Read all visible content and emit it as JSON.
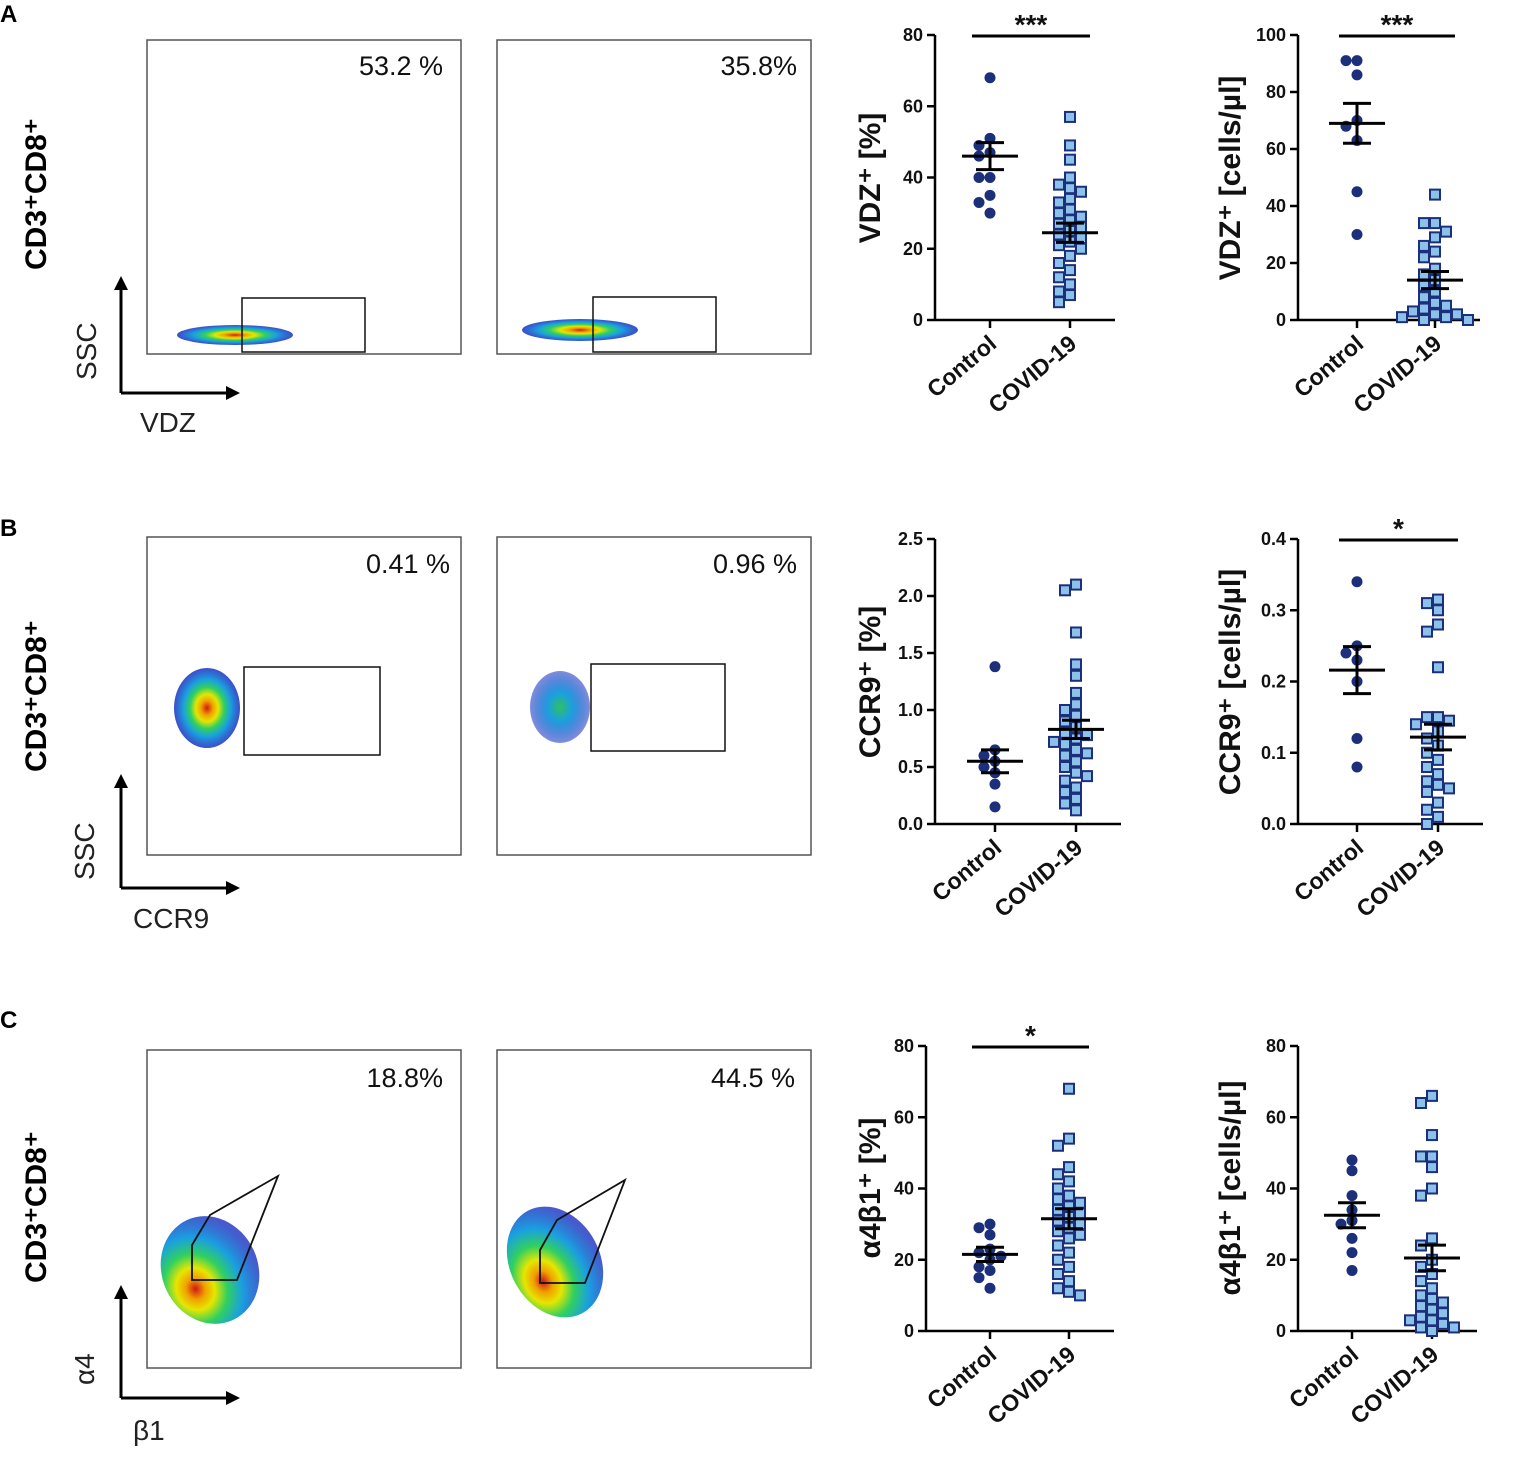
{
  "colors": {
    "control": "#1b2f7a",
    "covid_fill": "#8cc1ea",
    "covid_stroke": "#1b2f7a",
    "line": "#000000"
  },
  "panels": [
    {
      "letter": "A",
      "row_label": "CD3⁺CD8⁺",
      "flow_y_axis": "SSC",
      "flow_x_axis": "VDZ",
      "flow_left_pct": "53.2 %",
      "flow_right_pct": "35.8%"
    },
    {
      "letter": "B",
      "row_label": "CD3⁺CD8⁺",
      "flow_y_axis": "SSC",
      "flow_x_axis": "CCR9",
      "flow_left_pct": "0.41 %",
      "flow_right_pct": "0.96 %"
    },
    {
      "letter": "C",
      "row_label": "CD3⁺CD8⁺",
      "flow_y_axis": "α4",
      "flow_x_axis": "β1",
      "flow_left_pct": "18.8%",
      "flow_right_pct": "44.5 %"
    }
  ],
  "chart_data": [
    {
      "type": "scatter",
      "id": "A-pct",
      "ylabel": "VDZ⁺ [%]",
      "categories": [
        "Control",
        "COVID-19"
      ],
      "ylim": [
        0,
        80
      ],
      "yticks": [
        "0",
        "20",
        "40",
        "60",
        "80"
      ],
      "significance": "***",
      "series": [
        {
          "name": "Control",
          "mean": 46,
          "sem": 3.8,
          "values": [
            68,
            51,
            49,
            47,
            46,
            40,
            40,
            35,
            33,
            30
          ]
        },
        {
          "name": "COVID-19",
          "mean": 24.5,
          "sem": 2.7,
          "values": [
            57,
            49,
            45,
            40,
            38,
            37,
            36,
            34,
            33,
            31,
            30,
            29,
            28,
            27,
            26,
            25,
            24,
            23,
            22,
            21,
            20,
            18,
            16,
            14,
            12,
            10,
            8,
            7,
            5
          ]
        }
      ]
    },
    {
      "type": "scatter",
      "id": "A-abs",
      "ylabel": "VDZ⁺ [cells/µl]",
      "categories": [
        "Control",
        "COVID-19"
      ],
      "ylim": [
        0,
        100
      ],
      "yticks": [
        "0",
        "20",
        "40",
        "60",
        "80",
        "100"
      ],
      "significance": "***",
      "series": [
        {
          "name": "Control",
          "mean": 69,
          "sem": 7,
          "values": [
            91,
            91,
            86,
            70,
            68,
            63,
            45,
            30
          ]
        },
        {
          "name": "COVID-19",
          "mean": 14,
          "sem": 3,
          "values": [
            44,
            34,
            34,
            31,
            29,
            26,
            24,
            22,
            18,
            16,
            14,
            12,
            10,
            8,
            6,
            5,
            4,
            3,
            2,
            2,
            1,
            1,
            0,
            0
          ]
        }
      ]
    },
    {
      "type": "scatter",
      "id": "B-pct",
      "ylabel": "CCR9⁺ [%]",
      "categories": [
        "Control",
        "COVID-19"
      ],
      "ylim": [
        0,
        2.5
      ],
      "yticks": [
        "0.0",
        "0.5",
        "1.0",
        "1.5",
        "2.0",
        "2.5"
      ],
      "significance": "",
      "series": [
        {
          "name": "Control",
          "mean": 0.55,
          "sem": 0.1,
          "values": [
            1.38,
            0.65,
            0.6,
            0.55,
            0.5,
            0.45,
            0.35,
            0.15
          ]
        },
        {
          "name": "COVID-19",
          "mean": 0.83,
          "sem": 0.08,
          "values": [
            2.1,
            2.05,
            1.68,
            1.4,
            1.3,
            1.15,
            1.05,
            1.0,
            0.95,
            0.9,
            0.85,
            0.8,
            0.78,
            0.75,
            0.72,
            0.7,
            0.65,
            0.62,
            0.6,
            0.55,
            0.5,
            0.45,
            0.42,
            0.38,
            0.32,
            0.28,
            0.22,
            0.18,
            0.12
          ]
        }
      ]
    },
    {
      "type": "scatter",
      "id": "B-abs",
      "ylabel": "CCR9⁺ [cells/µl]",
      "categories": [
        "Control",
        "COVID-19"
      ],
      "ylim": [
        0,
        0.4
      ],
      "yticks": [
        "0.0",
        "0.1",
        "0.2",
        "0.3",
        "0.4"
      ],
      "significance": "*",
      "series": [
        {
          "name": "Control",
          "mean": 0.216,
          "sem": 0.033,
          "values": [
            0.34,
            0.25,
            0.24,
            0.23,
            0.2,
            0.12,
            0.08
          ]
        },
        {
          "name": "COVID-19",
          "mean": 0.122,
          "sem": 0.018,
          "values": [
            0.315,
            0.31,
            0.3,
            0.28,
            0.27,
            0.22,
            0.15,
            0.15,
            0.145,
            0.14,
            0.13,
            0.12,
            0.11,
            0.1,
            0.09,
            0.08,
            0.07,
            0.06,
            0.055,
            0.05,
            0.045,
            0.03,
            0.02,
            0.01,
            0.0
          ]
        }
      ]
    },
    {
      "type": "scatter",
      "id": "C-pct",
      "ylabel": "α4β1⁺ [%]",
      "categories": [
        "Control",
        "COVID-19"
      ],
      "ylim": [
        0,
        80
      ],
      "yticks": [
        "0",
        "20",
        "40",
        "60",
        "80"
      ],
      "significance": "*",
      "series": [
        {
          "name": "Control",
          "mean": 21.5,
          "sem": 2,
          "values": [
            30,
            29,
            27,
            23,
            22,
            21,
            20,
            18,
            17,
            15,
            12
          ]
        },
        {
          "name": "COVID-19",
          "mean": 31.5,
          "sem": 2.8,
          "values": [
            68,
            54,
            52,
            46,
            44,
            42,
            40,
            38,
            37,
            36,
            35,
            34,
            33,
            32,
            31,
            30,
            29,
            28,
            27,
            26,
            24,
            22,
            20,
            18,
            16,
            14,
            12,
            11,
            10
          ]
        }
      ]
    },
    {
      "type": "scatter",
      "id": "C-abs",
      "ylabel": "α4β1⁺ [cells/µl]",
      "categories": [
        "Control",
        "COVID-19"
      ],
      "ylim": [
        0,
        80
      ],
      "yticks": [
        "0",
        "20",
        "40",
        "60",
        "80"
      ],
      "significance": "",
      "series": [
        {
          "name": "Control",
          "mean": 32.5,
          "sem": 3.5,
          "values": [
            48,
            45,
            38,
            34,
            31,
            30,
            26,
            22,
            17
          ]
        },
        {
          "name": "COVID-19",
          "mean": 20.5,
          "sem": 3.6,
          "values": [
            66,
            64,
            55,
            49,
            49,
            46,
            40,
            38,
            26,
            24,
            20,
            18,
            16,
            14,
            12,
            10,
            9,
            8,
            7,
            6,
            5,
            4,
            3,
            3,
            2,
            1,
            1,
            0
          ]
        }
      ]
    }
  ]
}
